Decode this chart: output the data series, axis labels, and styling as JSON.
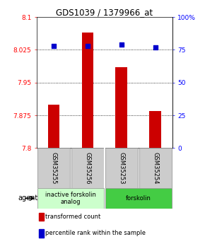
{
  "title": "GDS1039 / 1379966_at",
  "samples": [
    "GSM35255",
    "GSM35256",
    "GSM35253",
    "GSM35254"
  ],
  "bar_values": [
    7.9,
    8.065,
    7.985,
    7.885
  ],
  "percentile_values": [
    78,
    78,
    79,
    77
  ],
  "ylim_left": [
    7.8,
    8.1
  ],
  "ylim_right": [
    0,
    100
  ],
  "yticks_left": [
    7.8,
    7.875,
    7.95,
    8.025,
    8.1
  ],
  "ytick_labels_left": [
    "7.8",
    "7.875",
    "7.95",
    "8.025",
    "8.1"
  ],
  "yticks_right": [
    0,
    25,
    50,
    75,
    100
  ],
  "ytick_labels_right": [
    "0",
    "25",
    "50",
    "75",
    "100%"
  ],
  "bar_color": "#cc0000",
  "dot_color": "#0000cc",
  "bar_bottom": 7.8,
  "groups": [
    {
      "label": "inactive forskolin\nanalog",
      "samples": [
        0,
        1
      ],
      "color": "#ccffcc"
    },
    {
      "label": "forskolin",
      "samples": [
        2,
        3
      ],
      "color": "#44cc44"
    }
  ],
  "agent_label": "agent",
  "legend_items": [
    {
      "color": "#cc0000",
      "label": "transformed count"
    },
    {
      "color": "#0000cc",
      "label": "percentile rank within the sample"
    }
  ]
}
